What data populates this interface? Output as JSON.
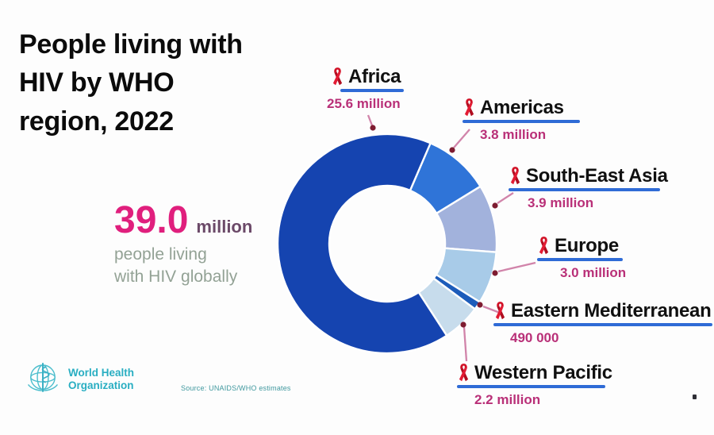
{
  "title": "People living with\nHIV by WHO\nregion, 2022",
  "total": {
    "value": "39.0",
    "unit": "million",
    "caption": "people living\nwith HIV globally"
  },
  "chart_data": {
    "type": "pie",
    "subtype": "donut",
    "title": "People living with HIV by WHO region, 2022",
    "total_label": "39.0 million people living with HIV globally",
    "total_millions": 39.0,
    "rotation_deg": 147,
    "legend_position": "callout-labels",
    "segments": [
      {
        "label": "Africa",
        "value_millions": 25.6,
        "value_label": "25.6 million",
        "color": "#1544b0"
      },
      {
        "label": "Americas",
        "value_millions": 3.8,
        "value_label": "3.8 million",
        "color": "#2f74d8"
      },
      {
        "label": "South-East Asia",
        "value_millions": 3.9,
        "value_label": "3.9 million",
        "color": "#a2b2dc"
      },
      {
        "label": "Europe",
        "value_millions": 3.0,
        "value_label": "3.0 million",
        "color": "#a8cbe8"
      },
      {
        "label": "Eastern Mediterranean",
        "value_millions": 0.49,
        "value_label": "490 000",
        "color": "#1d5cba"
      },
      {
        "label": "Western Pacific",
        "value_millions": 2.2,
        "value_label": "2.2 million",
        "color": "#c7dcec"
      }
    ]
  },
  "footer": {
    "logo_line1": "World Health",
    "logo_line2": "Organization",
    "source": "Source: UNAIDS/WHO estimates"
  },
  "colors": {
    "accent_pink": "#e01f7d",
    "value_magenta": "#b93078",
    "underline_blue": "#2f6bd6",
    "leader_pink": "#d184aa",
    "leader_dot": "#7e1c31",
    "ribbon_red": "#d11126",
    "who_teal": "#29aec2"
  }
}
